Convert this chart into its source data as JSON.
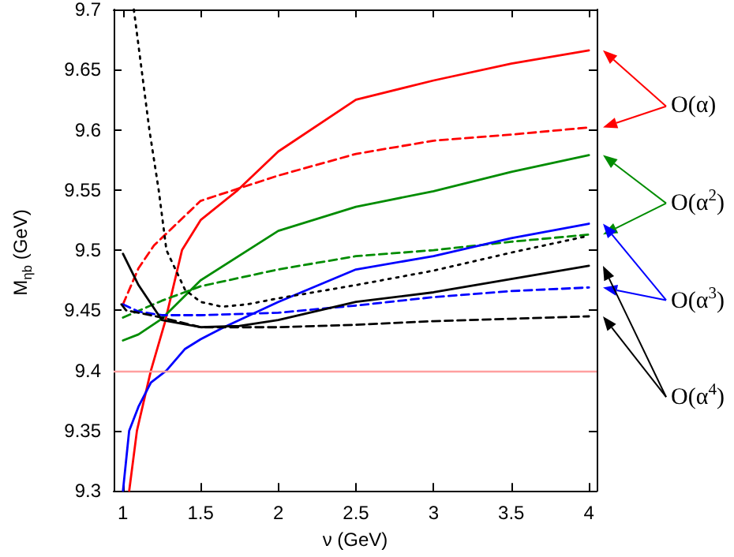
{
  "chart_data": {
    "type": "line",
    "xlabel": "ν (GeV)",
    "ylabel": "M$_{ηb}$ (GeV)",
    "xlim": [
      0.94,
      4.05
    ],
    "xticks": [
      1,
      1.5,
      2,
      2.5,
      3,
      3.5,
      4
    ],
    "ylim": [
      9.3,
      9.7
    ],
    "yticks": [
      9.3,
      9.35,
      9.4,
      9.45,
      9.5,
      9.55,
      9.6,
      9.65,
      9.7
    ],
    "grid": false,
    "annotations": [
      "O(α)",
      "O(α$^{2}$)",
      "O(α$^{3}$)",
      "O(α$^{4}$)"
    ],
    "ref_lines": [
      {
        "axis": "y",
        "value": 9.4,
        "color": "#ffa0a0"
      }
    ],
    "series": [
      {
        "color": "#ff0000",
        "line_style": "solid",
        "x": [
          1.04,
          1.09,
          1.18,
          1.27,
          1.38,
          1.5,
          1.74,
          2,
          2.5,
          3,
          3.5,
          4
        ],
        "values": [
          9.3,
          9.35,
          9.4,
          9.44,
          9.5,
          9.525,
          9.55,
          9.582,
          9.625,
          9.641,
          9.655,
          9.666
        ]
      },
      {
        "color": "#ff0000",
        "line_style": "dashed",
        "x": [
          1,
          1.05,
          1.1,
          1.2,
          1.5,
          2,
          2.5,
          3,
          3.5,
          4
        ],
        "values": [
          9.455,
          9.47,
          9.485,
          9.504,
          9.541,
          9.562,
          9.58,
          9.591,
          9.596,
          9.602
        ]
      },
      {
        "color": "#008c00",
        "line_style": "solid",
        "x": [
          1,
          1.1,
          1.25,
          1.5,
          2,
          2.5,
          3,
          3.5,
          4
        ],
        "values": [
          9.425,
          9.43,
          9.443,
          9.475,
          9.516,
          9.536,
          9.549,
          9.565,
          9.579
        ]
      },
      {
        "color": "#008c00",
        "line_style": "dashed",
        "x": [
          1,
          1.25,
          1.5,
          2,
          2.5,
          3,
          3.5,
          4
        ],
        "values": [
          9.444,
          9.458,
          9.47,
          9.484,
          9.495,
          9.5,
          9.507,
          9.513
        ]
      },
      {
        "color": "#0000ff",
        "line_style": "solid",
        "x": [
          1,
          1.04,
          1.1,
          1.18,
          1.28,
          1.4,
          1.5,
          1.65,
          2,
          2.5,
          3,
          3.5,
          4
        ],
        "values": [
          9.3,
          9.35,
          9.37,
          9.39,
          9.4,
          9.418,
          9.426,
          9.436,
          9.457,
          9.484,
          9.495,
          9.51,
          9.522
        ]
      },
      {
        "color": "#0000ff",
        "line_style": "dashed",
        "x": [
          1,
          1.1,
          1.25,
          1.5,
          2,
          2.5,
          3,
          3.5,
          4
        ],
        "values": [
          9.455,
          9.449,
          9.446,
          9.446,
          9.448,
          9.454,
          9.461,
          9.466,
          9.469
        ]
      },
      {
        "color": "#000000",
        "line_style": "solid",
        "x": [
          1,
          1.1,
          1.25,
          1.5,
          1.75,
          2,
          2.5,
          3,
          3.5,
          4
        ],
        "values": [
          9.497,
          9.471,
          9.442,
          9.436,
          9.437,
          9.442,
          9.457,
          9.465,
          9.476,
          9.487
        ]
      },
      {
        "color": "#000000",
        "line_style": "dashed",
        "x": [
          0.99,
          1.02,
          1.1,
          1.25,
          1.5,
          2,
          2.5,
          3,
          3.5,
          4
        ],
        "values": [
          9.455,
          9.45,
          9.448,
          9.444,
          9.436,
          9.436,
          9.438,
          9.441,
          9.443,
          9.445
        ]
      },
      {
        "color": "#000000",
        "line_style": "dotted",
        "x": [
          1.07,
          1.12,
          1.17,
          1.23,
          1.28,
          1.4,
          1.5,
          1.64,
          1.8,
          2,
          2.5,
          3,
          3.5,
          4
        ],
        "values": [
          9.7,
          9.65,
          9.6,
          9.55,
          9.5,
          9.467,
          9.457,
          9.453,
          9.455,
          9.46,
          9.471,
          9.483,
          9.498,
          9.512
        ]
      }
    ]
  }
}
